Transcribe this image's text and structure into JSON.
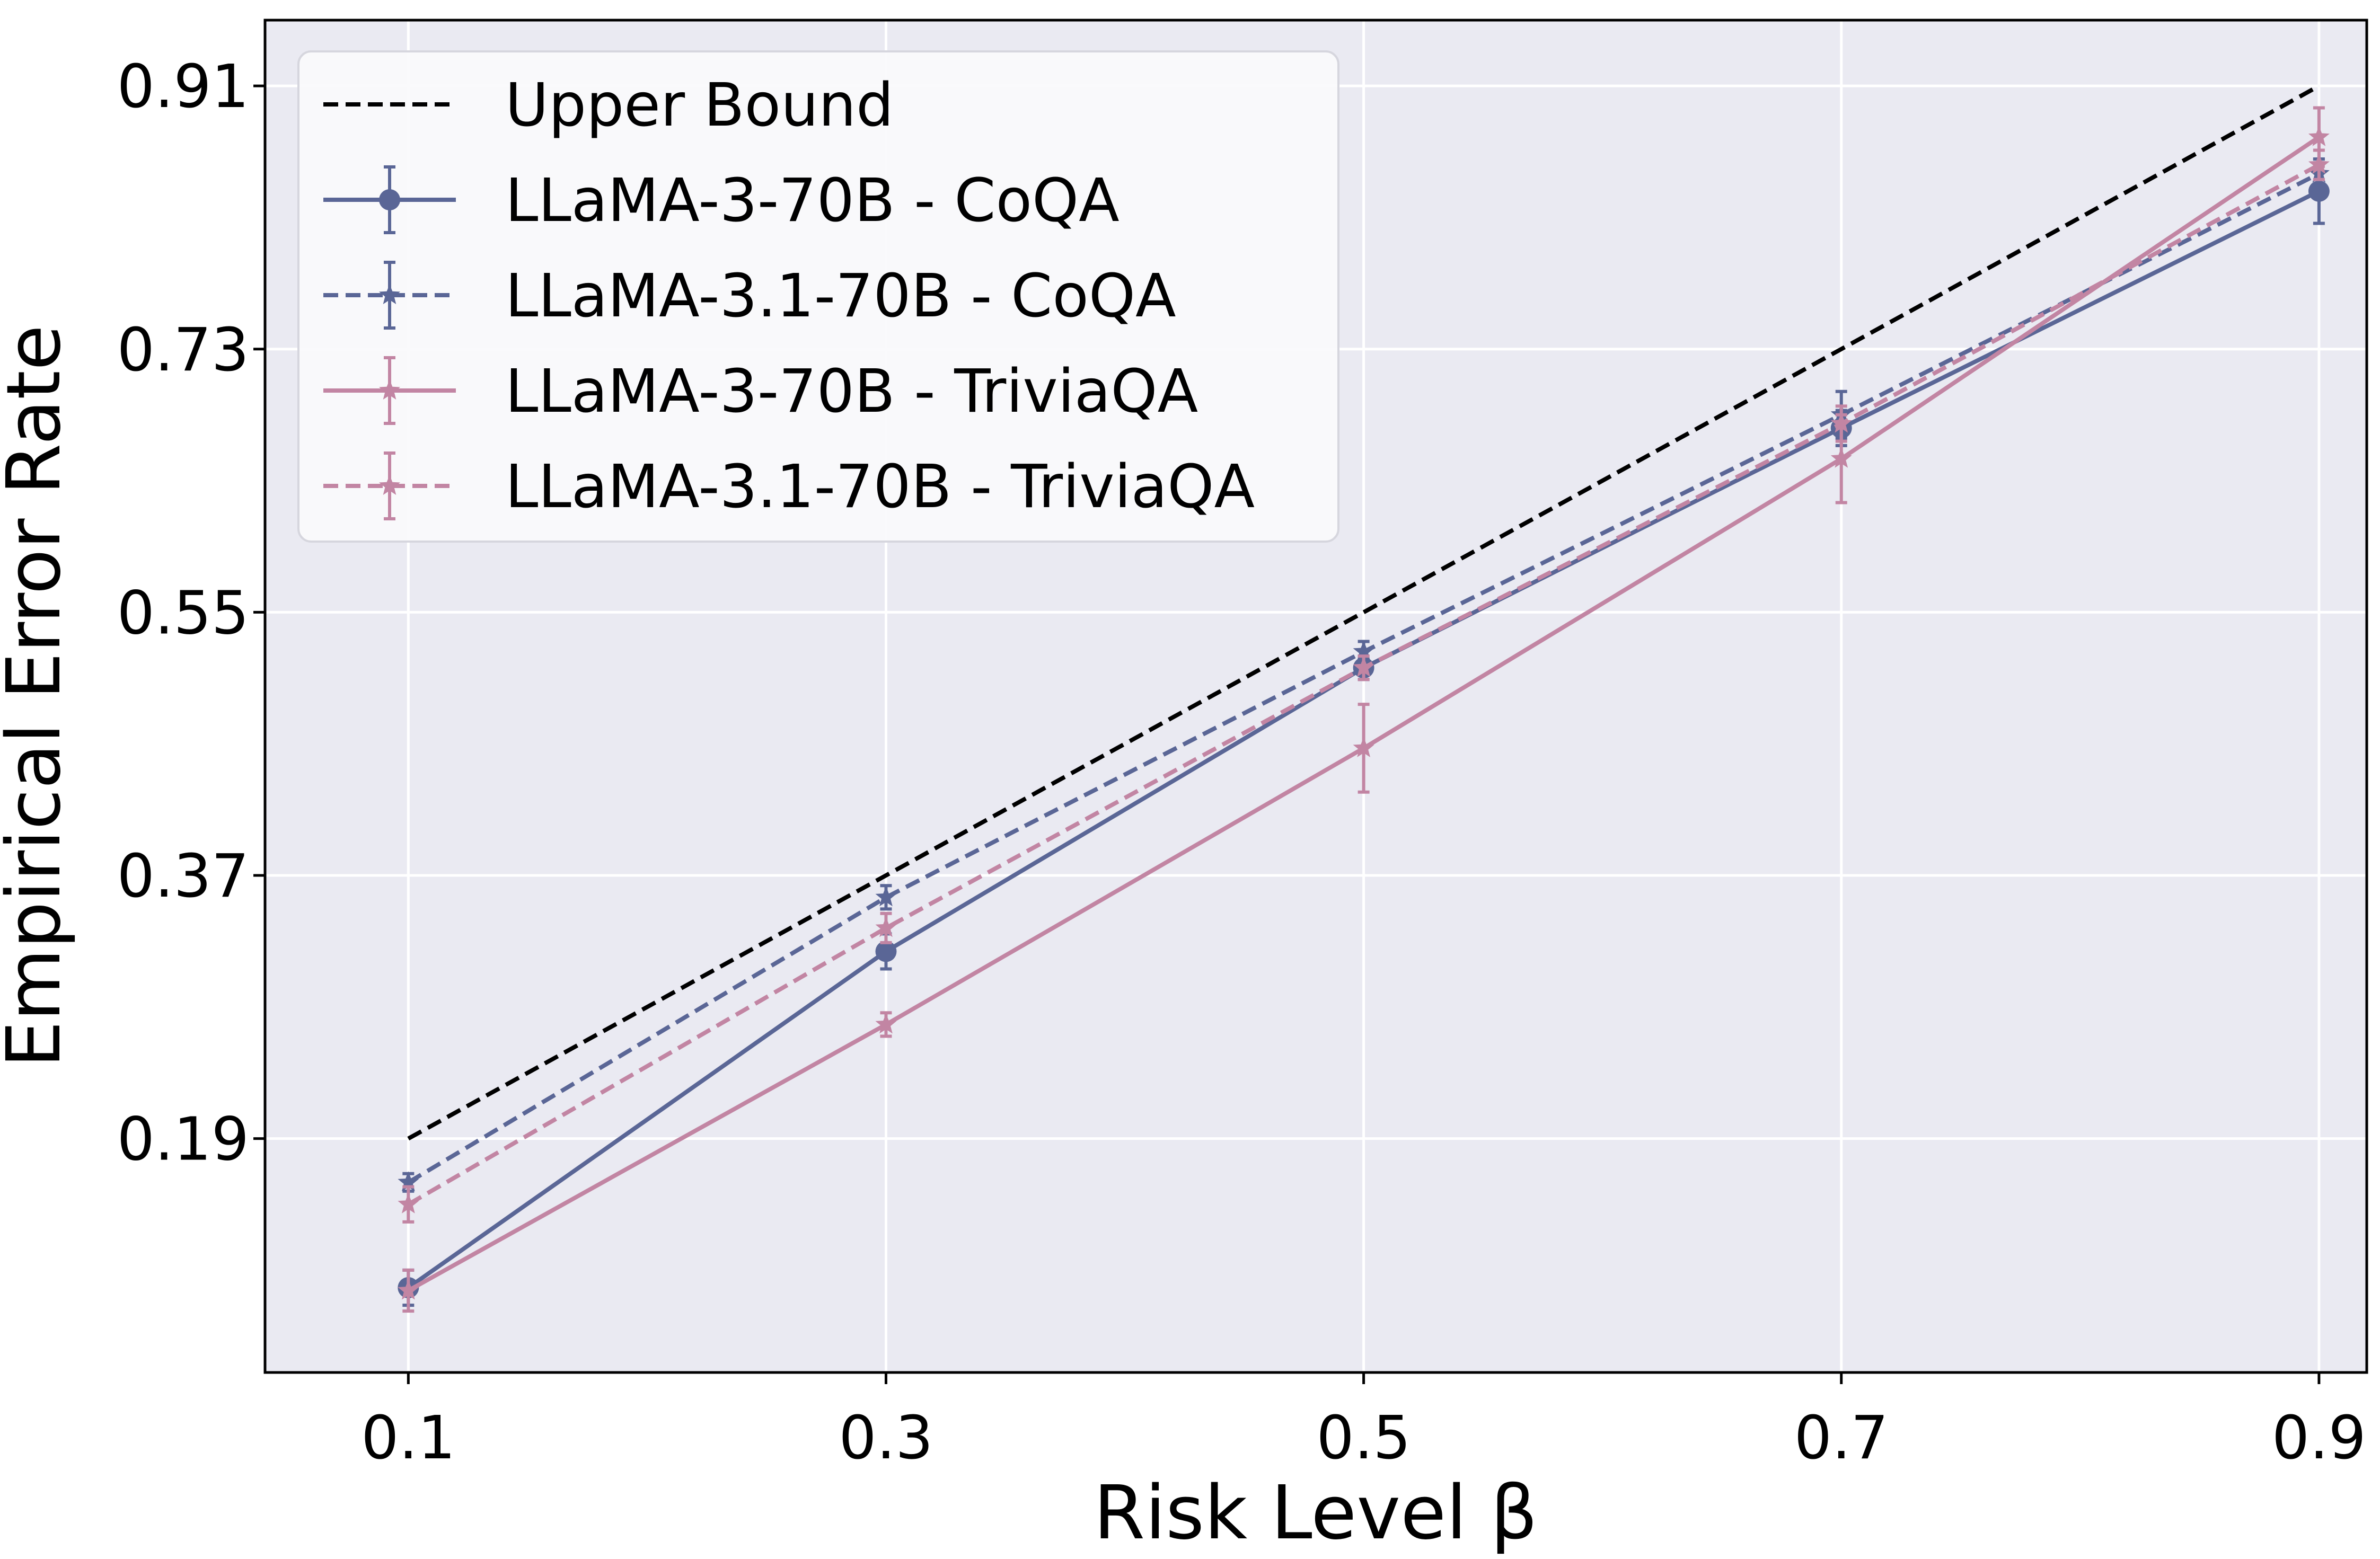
{
  "chart_data": {
    "type": "line",
    "xlabel": "Risk Level β",
    "ylabel": "Empirical Error Rate",
    "xlim": [
      0.04,
      0.92
    ],
    "ylim": [
      0.03,
      0.955
    ],
    "xticks": [
      0.1,
      0.3,
      0.5,
      0.7,
      0.9
    ],
    "xtick_labels": [
      "0.1",
      "0.3",
      "0.5",
      "0.7",
      "0.9"
    ],
    "yticks": [
      0.19,
      0.37,
      0.55,
      0.73,
      0.91
    ],
    "ytick_labels": [
      "0.19",
      "0.37",
      "0.55",
      "0.73",
      "0.91"
    ],
    "grid": true,
    "legend_position": "top-left",
    "x": [
      0.1,
      0.3,
      0.5,
      0.7,
      0.9
    ],
    "series": [
      {
        "name": "Upper Bound",
        "values": [
          0.19,
          0.37,
          0.55,
          0.73,
          0.91
        ],
        "err": null,
        "color": "#000000",
        "dashed": true,
        "marker": "none"
      },
      {
        "name": "LLaMA-3-70B - CoQA",
        "values": [
          0.088,
          0.318,
          0.512,
          0.676,
          0.838
        ],
        "err": [
          0.012,
          0.012,
          0.008,
          0.012,
          0.022
        ],
        "color": "#5a6696",
        "dashed": false,
        "marker": "circle"
      },
      {
        "name": "LLaMA-3.1-70B - CoQA",
        "values": [
          0.16,
          0.355,
          0.523,
          0.685,
          0.85
        ],
        "err": [
          0.006,
          0.008,
          0.007,
          0.016,
          0.01
        ],
        "color": "#5a6696",
        "dashed": true,
        "marker": "star"
      },
      {
        "name": "LLaMA-3-70B - TriviaQA",
        "values": [
          0.086,
          0.268,
          0.457,
          0.655,
          0.875
        ],
        "err": [
          0.014,
          0.008,
          0.03,
          0.03,
          0.02
        ],
        "color": "#c285a3",
        "dashed": false,
        "marker": "star"
      },
      {
        "name": "LLaMA-3.1-70B - TriviaQA",
        "values": [
          0.145,
          0.334,
          0.512,
          0.679,
          0.856
        ],
        "err": [
          0.012,
          0.01,
          0.008,
          0.012,
          0.01
        ],
        "color": "#c285a3",
        "dashed": true,
        "marker": "star"
      }
    ]
  }
}
